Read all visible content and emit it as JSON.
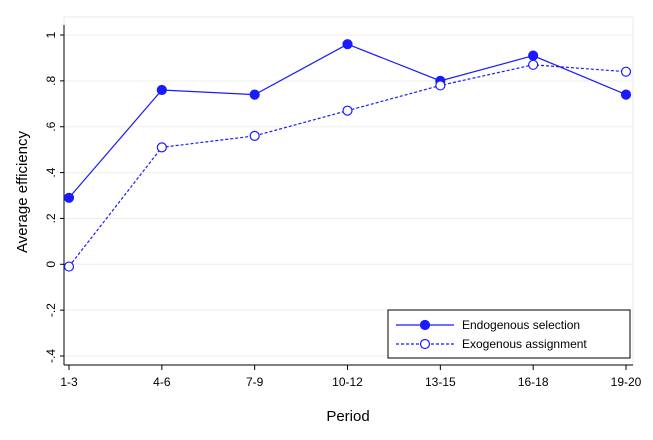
{
  "chart_data": {
    "type": "line",
    "title": "",
    "xlabel": "Period",
    "ylabel": "Average efficiency",
    "categories": [
      "1-3",
      "4-6",
      "7-9",
      "10-12",
      "13-15",
      "16-18",
      "19-20"
    ],
    "y_ticks": [
      -0.4,
      -0.2,
      0,
      0.2,
      0.4,
      0.6,
      0.8,
      1
    ],
    "y_tick_labels": [
      "-.4",
      "-.2",
      "0",
      ".2",
      ".4",
      ".6",
      ".8",
      "1"
    ],
    "ylim": [
      -0.4,
      1
    ],
    "grid": true,
    "legend_position": "bottom-right",
    "series": [
      {
        "name": "Endogenous selection",
        "values": [
          0.29,
          0.76,
          0.74,
          0.96,
          0.8,
          0.91,
          0.74
        ],
        "color": "#1a1aff",
        "line_style": "solid",
        "marker": "filled-circle"
      },
      {
        "name": "Exogenous assignment",
        "values": [
          -0.01,
          0.51,
          0.56,
          0.67,
          0.78,
          0.87,
          0.84
        ],
        "color": "#1a1aff",
        "line_style": "dashed",
        "marker": "hollow-circle"
      }
    ]
  }
}
